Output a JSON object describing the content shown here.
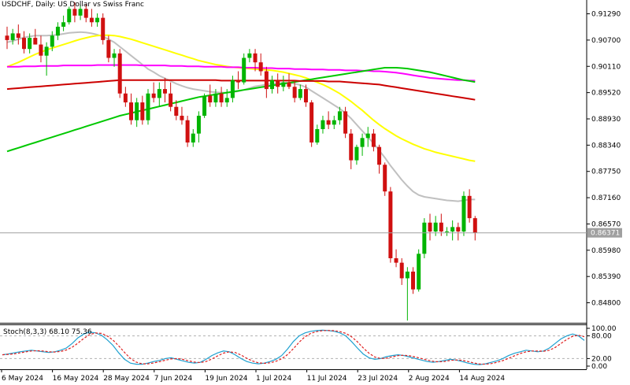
{
  "header": {
    "symbol": "USDCHF",
    "timeframe": "Daily",
    "description": "US Dollar vs Swiss Franc"
  },
  "chart_data": {
    "type": "candlestick",
    "price_axis": {
      "ylim": [
        0.8435,
        0.916
      ],
      "ticks": [
        "0.91290",
        "0.90700",
        "0.90110",
        "0.89520",
        "0.88930",
        "0.88340",
        "0.87750",
        "0.87160",
        "0.86570",
        "0.85980",
        "0.85390",
        "0.84800"
      ]
    },
    "current_price": {
      "value": 0.86371,
      "label": "0.86371"
    },
    "date_labels": [
      "6 May 2024",
      "16 May 2024",
      "28 May 2024",
      "7 Jun 2024",
      "19 Jun 2024",
      "1 Jul 2024",
      "11 Jul 2024",
      "23 Jul 2024",
      "2 Aug 2024",
      "14 Aug 2024"
    ],
    "candles": [
      {
        "o": 0.908,
        "h": 0.91,
        "l": 0.905,
        "c": 0.907
      },
      {
        "o": 0.907,
        "h": 0.9095,
        "l": 0.906,
        "c": 0.9085
      },
      {
        "o": 0.9085,
        "h": 0.9105,
        "l": 0.906,
        "c": 0.9075
      },
      {
        "o": 0.9075,
        "h": 0.909,
        "l": 0.904,
        "c": 0.905
      },
      {
        "o": 0.905,
        "h": 0.9085,
        "l": 0.904,
        "c": 0.9075
      },
      {
        "o": 0.9075,
        "h": 0.9095,
        "l": 0.906,
        "c": 0.906
      },
      {
        "o": 0.906,
        "h": 0.908,
        "l": 0.902,
        "c": 0.9035
      },
      {
        "o": 0.9035,
        "h": 0.9065,
        "l": 0.899,
        "c": 0.9055
      },
      {
        "o": 0.9055,
        "h": 0.909,
        "l": 0.9045,
        "c": 0.908
      },
      {
        "o": 0.908,
        "h": 0.911,
        "l": 0.907,
        "c": 0.91
      },
      {
        "o": 0.91,
        "h": 0.9125,
        "l": 0.909,
        "c": 0.911
      },
      {
        "o": 0.911,
        "h": 0.9145,
        "l": 0.9105,
        "c": 0.914
      },
      {
        "o": 0.914,
        "h": 0.9155,
        "l": 0.911,
        "c": 0.9125
      },
      {
        "o": 0.9125,
        "h": 0.915,
        "l": 0.9115,
        "c": 0.914
      },
      {
        "o": 0.914,
        "h": 0.915,
        "l": 0.911,
        "c": 0.912
      },
      {
        "o": 0.912,
        "h": 0.914,
        "l": 0.91,
        "c": 0.911
      },
      {
        "o": 0.911,
        "h": 0.913,
        "l": 0.91,
        "c": 0.912
      },
      {
        "o": 0.912,
        "h": 0.913,
        "l": 0.906,
        "c": 0.907
      },
      {
        "o": 0.907,
        "h": 0.908,
        "l": 0.902,
        "c": 0.903
      },
      {
        "o": 0.903,
        "h": 0.905,
        "l": 0.901,
        "c": 0.904
      },
      {
        "o": 0.904,
        "h": 0.905,
        "l": 0.894,
        "c": 0.895
      },
      {
        "o": 0.895,
        "h": 0.8965,
        "l": 0.892,
        "c": 0.893
      },
      {
        "o": 0.893,
        "h": 0.895,
        "l": 0.888,
        "c": 0.889
      },
      {
        "o": 0.889,
        "h": 0.894,
        "l": 0.8875,
        "c": 0.893
      },
      {
        "o": 0.893,
        "h": 0.8945,
        "l": 0.888,
        "c": 0.889
      },
      {
        "o": 0.889,
        "h": 0.896,
        "l": 0.888,
        "c": 0.895
      },
      {
        "o": 0.895,
        "h": 0.8975,
        "l": 0.893,
        "c": 0.894
      },
      {
        "o": 0.894,
        "h": 0.8975,
        "l": 0.892,
        "c": 0.896
      },
      {
        "o": 0.896,
        "h": 0.8985,
        "l": 0.893,
        "c": 0.895
      },
      {
        "o": 0.895,
        "h": 0.8975,
        "l": 0.891,
        "c": 0.892
      },
      {
        "o": 0.892,
        "h": 0.8935,
        "l": 0.889,
        "c": 0.89
      },
      {
        "o": 0.89,
        "h": 0.892,
        "l": 0.888,
        "c": 0.889
      },
      {
        "o": 0.889,
        "h": 0.89,
        "l": 0.883,
        "c": 0.884
      },
      {
        "o": 0.884,
        "h": 0.887,
        "l": 0.883,
        "c": 0.886
      },
      {
        "o": 0.886,
        "h": 0.891,
        "l": 0.884,
        "c": 0.89
      },
      {
        "o": 0.89,
        "h": 0.895,
        "l": 0.8895,
        "c": 0.8945
      },
      {
        "o": 0.8945,
        "h": 0.897,
        "l": 0.892,
        "c": 0.893
      },
      {
        "o": 0.893,
        "h": 0.896,
        "l": 0.892,
        "c": 0.895
      },
      {
        "o": 0.895,
        "h": 0.8965,
        "l": 0.892,
        "c": 0.893
      },
      {
        "o": 0.893,
        "h": 0.896,
        "l": 0.892,
        "c": 0.894
      },
      {
        "o": 0.894,
        "h": 0.899,
        "l": 0.893,
        "c": 0.898
      },
      {
        "o": 0.898,
        "h": 0.9,
        "l": 0.896,
        "c": 0.8975
      },
      {
        "o": 0.8975,
        "h": 0.904,
        "l": 0.897,
        "c": 0.903
      },
      {
        "o": 0.903,
        "h": 0.905,
        "l": 0.902,
        "c": 0.904
      },
      {
        "o": 0.904,
        "h": 0.905,
        "l": 0.9,
        "c": 0.902
      },
      {
        "o": 0.902,
        "h": 0.904,
        "l": 0.899,
        "c": 0.9
      },
      {
        "o": 0.9,
        "h": 0.901,
        "l": 0.894,
        "c": 0.896
      },
      {
        "o": 0.896,
        "h": 0.899,
        "l": 0.895,
        "c": 0.898
      },
      {
        "o": 0.898,
        "h": 0.8995,
        "l": 0.895,
        "c": 0.8965
      },
      {
        "o": 0.8965,
        "h": 0.899,
        "l": 0.8955,
        "c": 0.8975
      },
      {
        "o": 0.8975,
        "h": 0.8995,
        "l": 0.896,
        "c": 0.8965
      },
      {
        "o": 0.8965,
        "h": 0.898,
        "l": 0.893,
        "c": 0.894
      },
      {
        "o": 0.894,
        "h": 0.897,
        "l": 0.8935,
        "c": 0.896
      },
      {
        "o": 0.896,
        "h": 0.897,
        "l": 0.892,
        "c": 0.893
      },
      {
        "o": 0.893,
        "h": 0.8935,
        "l": 0.883,
        "c": 0.884
      },
      {
        "o": 0.884,
        "h": 0.888,
        "l": 0.8835,
        "c": 0.887
      },
      {
        "o": 0.887,
        "h": 0.89,
        "l": 0.886,
        "c": 0.889
      },
      {
        "o": 0.889,
        "h": 0.891,
        "l": 0.887,
        "c": 0.888
      },
      {
        "o": 0.888,
        "h": 0.89,
        "l": 0.887,
        "c": 0.889
      },
      {
        "o": 0.889,
        "h": 0.892,
        "l": 0.888,
        "c": 0.891
      },
      {
        "o": 0.891,
        "h": 0.892,
        "l": 0.885,
        "c": 0.886
      },
      {
        "o": 0.886,
        "h": 0.887,
        "l": 0.878,
        "c": 0.88
      },
      {
        "o": 0.88,
        "h": 0.8835,
        "l": 0.879,
        "c": 0.883
      },
      {
        "o": 0.883,
        "h": 0.886,
        "l": 0.881,
        "c": 0.885
      },
      {
        "o": 0.885,
        "h": 0.8875,
        "l": 0.883,
        "c": 0.886
      },
      {
        "o": 0.886,
        "h": 0.887,
        "l": 0.882,
        "c": 0.883
      },
      {
        "o": 0.883,
        "h": 0.8835,
        "l": 0.877,
        "c": 0.879
      },
      {
        "o": 0.879,
        "h": 0.8795,
        "l": 0.872,
        "c": 0.873
      },
      {
        "o": 0.873,
        "h": 0.874,
        "l": 0.857,
        "c": 0.858
      },
      {
        "o": 0.858,
        "h": 0.86,
        "l": 0.856,
        "c": 0.857
      },
      {
        "o": 0.857,
        "h": 0.858,
        "l": 0.852,
        "c": 0.8535
      },
      {
        "o": 0.8535,
        "h": 0.856,
        "l": 0.844,
        "c": 0.855
      },
      {
        "o": 0.855,
        "h": 0.856,
        "l": 0.85,
        "c": 0.851
      },
      {
        "o": 0.851,
        "h": 0.86,
        "l": 0.8505,
        "c": 0.859
      },
      {
        "o": 0.859,
        "h": 0.867,
        "l": 0.858,
        "c": 0.866
      },
      {
        "o": 0.866,
        "h": 0.868,
        "l": 0.862,
        "c": 0.864
      },
      {
        "o": 0.864,
        "h": 0.8675,
        "l": 0.863,
        "c": 0.866
      },
      {
        "o": 0.866,
        "h": 0.868,
        "l": 0.863,
        "c": 0.864
      },
      {
        "o": 0.864,
        "h": 0.865,
        "l": 0.863,
        "c": 0.864
      },
      {
        "o": 0.864,
        "h": 0.8665,
        "l": 0.862,
        "c": 0.865
      },
      {
        "o": 0.865,
        "h": 0.866,
        "l": 0.862,
        "c": 0.864
      },
      {
        "o": 0.864,
        "h": 0.873,
        "l": 0.863,
        "c": 0.872
      },
      {
        "o": 0.872,
        "h": 0.8735,
        "l": 0.866,
        "c": 0.867
      },
      {
        "o": 0.867,
        "h": 0.8675,
        "l": 0.862,
        "c": 0.8637
      }
    ],
    "moving_averages": [
      {
        "color": "#c0c0c0",
        "values": [
          0.9065,
          0.9068,
          0.9072,
          0.9076,
          0.9078,
          0.908,
          0.908,
          0.908,
          0.9081,
          0.9082,
          0.9084,
          0.9086,
          0.9087,
          0.9088,
          0.9087,
          0.9085,
          0.9082,
          0.9078,
          0.9072,
          0.9065,
          0.9055,
          0.9045,
          0.9035,
          0.9025,
          0.9015,
          0.9005,
          0.8998,
          0.899,
          0.8984,
          0.8978,
          0.8972,
          0.8967,
          0.8963,
          0.896,
          0.8958,
          0.8956,
          0.8954,
          0.8953,
          0.8952,
          0.8952,
          0.8953,
          0.8955,
          0.8958,
          0.8962,
          0.8966,
          0.8968,
          0.897,
          0.8972,
          0.8973,
          0.8974,
          0.8974,
          0.8972,
          0.8969,
          0.8964,
          0.8956,
          0.8948,
          0.894,
          0.8932,
          0.8924,
          0.8916,
          0.8906,
          0.8894,
          0.888,
          0.8866,
          0.8852,
          0.8838,
          0.8822,
          0.8806,
          0.8788,
          0.8772,
          0.8756,
          0.8742,
          0.873,
          0.8722,
          0.8718,
          0.8716,
          0.8714,
          0.8712,
          0.871,
          0.8709,
          0.8708,
          0.871,
          0.8712,
          0.8712
        ]
      },
      {
        "color": "#ffff00",
        "values": [
          0.901,
          0.9015,
          0.902,
          0.9026,
          0.9032,
          0.9038,
          0.9043,
          0.9048,
          0.9052,
          0.9056,
          0.906,
          0.9064,
          0.9068,
          0.9072,
          0.9075,
          0.9078,
          0.908,
          0.9081,
          0.9081,
          0.908,
          0.9078,
          0.9075,
          0.9072,
          0.9068,
          0.9064,
          0.906,
          0.9056,
          0.9052,
          0.9048,
          0.9044,
          0.904,
          0.9036,
          0.9032,
          0.9028,
          0.9024,
          0.9021,
          0.9018,
          0.9015,
          0.9013,
          0.9011,
          0.9009,
          0.9008,
          0.9007,
          0.9006,
          0.9005,
          0.9004,
          0.9003,
          0.9002,
          0.9,
          0.8998,
          0.8995,
          0.8992,
          0.8989,
          0.8985,
          0.898,
          0.8975,
          0.897,
          0.8964,
          0.8957,
          0.895,
          0.8941,
          0.8932,
          0.8922,
          0.8912,
          0.8901,
          0.889,
          0.888,
          0.8871,
          0.8863,
          0.8855,
          0.8848,
          0.8842,
          0.8836,
          0.8831,
          0.8826,
          0.8822,
          0.8818,
          0.8815,
          0.8812,
          0.8809,
          0.8806,
          0.8803,
          0.88,
          0.8798
        ]
      },
      {
        "color": "#ff00ff",
        "values": [
          0.901,
          0.901,
          0.901,
          0.9011,
          0.9011,
          0.9011,
          0.9012,
          0.9012,
          0.9012,
          0.9012,
          0.9013,
          0.9013,
          0.9013,
          0.9013,
          0.9013,
          0.9013,
          0.9014,
          0.9014,
          0.9014,
          0.9014,
          0.9014,
          0.9014,
          0.9014,
          0.9014,
          0.9013,
          0.9013,
          0.9013,
          0.9013,
          0.9013,
          0.9012,
          0.9012,
          0.9012,
          0.9011,
          0.9011,
          0.9011,
          0.901,
          0.901,
          0.901,
          0.901,
          0.9009,
          0.9009,
          0.9009,
          0.9008,
          0.9008,
          0.9008,
          0.9007,
          0.9007,
          0.9007,
          0.9006,
          0.9006,
          0.9006,
          0.9005,
          0.9005,
          0.9005,
          0.9004,
          0.9004,
          0.9004,
          0.9003,
          0.9003,
          0.9003,
          0.9002,
          0.9002,
          0.9002,
          0.9001,
          0.9001,
          0.9,
          0.9,
          0.8999,
          0.8998,
          0.8997,
          0.8995,
          0.8993,
          0.8991,
          0.8989,
          0.8987,
          0.8985,
          0.8984,
          0.8983,
          0.8982,
          0.8981,
          0.898,
          0.898,
          0.8979,
          0.8979
        ]
      },
      {
        "color": "#00c800",
        "values": [
          0.882,
          0.8824,
          0.8828,
          0.8832,
          0.8836,
          0.884,
          0.8844,
          0.8848,
          0.8852,
          0.8856,
          0.886,
          0.8864,
          0.8868,
          0.8872,
          0.8876,
          0.888,
          0.8884,
          0.8888,
          0.8892,
          0.8896,
          0.89,
          0.8903,
          0.8906,
          0.8909,
          0.8912,
          0.8915,
          0.8918,
          0.8921,
          0.8924,
          0.8927,
          0.893,
          0.8933,
          0.8936,
          0.8939,
          0.8942,
          0.8944,
          0.8946,
          0.8948,
          0.895,
          0.8952,
          0.8954,
          0.8956,
          0.8958,
          0.896,
          0.8962,
          0.8964,
          0.8966,
          0.8968,
          0.897,
          0.8972,
          0.8974,
          0.8976,
          0.8978,
          0.898,
          0.8982,
          0.8984,
          0.8986,
          0.8988,
          0.899,
          0.8992,
          0.8994,
          0.8996,
          0.8998,
          0.9,
          0.9002,
          0.9004,
          0.9006,
          0.9008,
          0.9008,
          0.9008,
          0.9007,
          0.9006,
          0.9004,
          0.9002,
          0.9,
          0.8998,
          0.8995,
          0.8992,
          0.8989,
          0.8986,
          0.8983,
          0.898,
          0.8978,
          0.8976
        ]
      },
      {
        "color": "#cc0000",
        "values": [
          0.896,
          0.8961,
          0.8962,
          0.8963,
          0.8964,
          0.8965,
          0.8966,
          0.8967,
          0.8968,
          0.8969,
          0.897,
          0.8971,
          0.8972,
          0.8973,
          0.8974,
          0.8975,
          0.8976,
          0.8977,
          0.8978,
          0.8979,
          0.898,
          0.898,
          0.898,
          0.898,
          0.898,
          0.898,
          0.898,
          0.898,
          0.898,
          0.898,
          0.898,
          0.898,
          0.898,
          0.898,
          0.898,
          0.898,
          0.898,
          0.898,
          0.8979,
          0.8979,
          0.8979,
          0.8979,
          0.8979,
          0.8979,
          0.8979,
          0.8979,
          0.8979,
          0.8979,
          0.8979,
          0.8979,
          0.8979,
          0.8979,
          0.8978,
          0.8978,
          0.8978,
          0.8978,
          0.8978,
          0.8977,
          0.8977,
          0.8977,
          0.8976,
          0.8975,
          0.8974,
          0.8973,
          0.8972,
          0.8971,
          0.897,
          0.8968,
          0.8966,
          0.8964,
          0.8962,
          0.896,
          0.8958,
          0.8956,
          0.8954,
          0.8952,
          0.895,
          0.8948,
          0.8946,
          0.8944,
          0.8942,
          0.894,
          0.8938,
          0.8936
        ]
      }
    ],
    "oscillator": {
      "label": "Stoch(8,3,3) 68.10 75.36",
      "axis_ticks": [
        "100.00",
        "80.00",
        "20.00",
        "0.00"
      ],
      "main_color": "#1ea0d0",
      "signal_color": "#e02020",
      "main": [
        30,
        32,
        35,
        38,
        40,
        42,
        40,
        38,
        36,
        38,
        42,
        48,
        60,
        75,
        85,
        90,
        88,
        82,
        70,
        55,
        35,
        18,
        8,
        5,
        5,
        8,
        12,
        15,
        20,
        22,
        18,
        14,
        10,
        8,
        10,
        18,
        28,
        35,
        40,
        38,
        30,
        20,
        12,
        8,
        6,
        8,
        12,
        18,
        28,
        45,
        65,
        80,
        88,
        92,
        94,
        95,
        94,
        92,
        88,
        80,
        65,
        48,
        32,
        22,
        18,
        20,
        25,
        28,
        30,
        28,
        24,
        20,
        16,
        12,
        10,
        12,
        15,
        18,
        16,
        12,
        8,
        5,
        4,
        6,
        10,
        14,
        20,
        28,
        34,
        38,
        42,
        40,
        38,
        40,
        48,
        60,
        72,
        80,
        85,
        80,
        68
      ]
    }
  }
}
